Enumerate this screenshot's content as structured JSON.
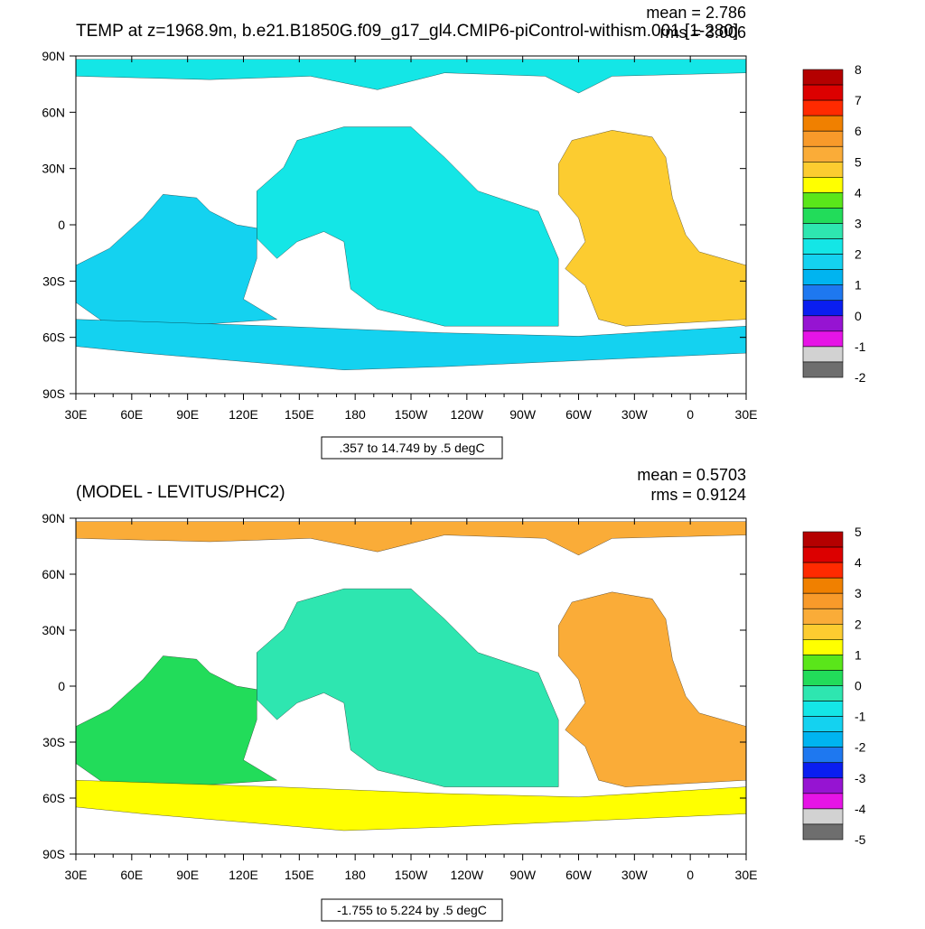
{
  "chart_data": [
    {
      "type": "heatmap",
      "id": "top",
      "title": "TEMP at z=1968.9m, b.e21.B1850G.f09_g17_gl4.CMIP6-piControl-withism.001 [1-280]",
      "stats": [
        "mean = 2.786",
        "rms = 3.006"
      ],
      "range_text": ".357 to 14.749 by .5 degC",
      "x_tick_labels": [
        "30E",
        "60E",
        "90E",
        "120E",
        "150E",
        "180",
        "150W",
        "120W",
        "90W",
        "60W",
        "30W",
        "0",
        "30E"
      ],
      "y_tick_labels": [
        "90N",
        "60N",
        "30N",
        "0",
        "30S",
        "60S",
        "90S"
      ],
      "x_range": [
        30,
        390
      ],
      "y_range": [
        -90,
        90
      ],
      "colorbar": {
        "labels": [
          "8",
          "7",
          "6",
          "5",
          "4",
          "3",
          "2",
          "1",
          "0",
          "-1",
          "-2"
        ],
        "colors": [
          "#b40000",
          "#dc0000",
          "#ff2a00",
          "#f08000",
          "#f89a2a",
          "#faac38",
          "#fccc30",
          "#ffff00",
          "#5ae61a",
          "#22dc5a",
          "#2ee6b0",
          "#14e6e6",
          "#14d2f0",
          "#00b4f0",
          "#1e78f0",
          "#0a1ef0",
          "#9614d2",
          "#e614e6",
          "#d2d2d2",
          "#6e6e6e"
        ]
      },
      "fill": {
        "pacific": "#14e6e6",
        "indian": "#14d2f0",
        "atlantic": "#fccc30",
        "southern": "#14d2f0",
        "arctic": "#14e6e6"
      }
    },
    {
      "type": "heatmap",
      "id": "bottom",
      "title": "(MODEL - LEVITUS/PHC2)",
      "stats": [
        "mean = 0.5703",
        "rms = 0.9124"
      ],
      "range_text": "-1.755 to 5.224 by .5 degC",
      "x_tick_labels": [
        "30E",
        "60E",
        "90E",
        "120E",
        "150E",
        "180",
        "150W",
        "120W",
        "90W",
        "60W",
        "30W",
        "0",
        "30E"
      ],
      "y_tick_labels": [
        "90N",
        "60N",
        "30N",
        "0",
        "30S",
        "60S",
        "90S"
      ],
      "x_range": [
        30,
        390
      ],
      "y_range": [
        -90,
        90
      ],
      "colorbar": {
        "labels": [
          "5",
          "4",
          "3",
          "2",
          "1",
          "0",
          "-1",
          "-2",
          "-3",
          "-4",
          "-5"
        ],
        "colors": [
          "#b40000",
          "#dc0000",
          "#ff2a00",
          "#f08000",
          "#f89a2a",
          "#faac38",
          "#fccc30",
          "#ffff00",
          "#5ae61a",
          "#22dc5a",
          "#2ee6b0",
          "#14e6e6",
          "#14d2f0",
          "#00b4f0",
          "#1e78f0",
          "#0a1ef0",
          "#9614d2",
          "#e614e6",
          "#d2d2d2",
          "#6e6e6e"
        ]
      },
      "fill": {
        "pacific": "#2ee6b0",
        "indian": "#22dc5a",
        "atlantic": "#faac38",
        "southern": "#ffff00",
        "arctic": "#faac38"
      }
    }
  ]
}
